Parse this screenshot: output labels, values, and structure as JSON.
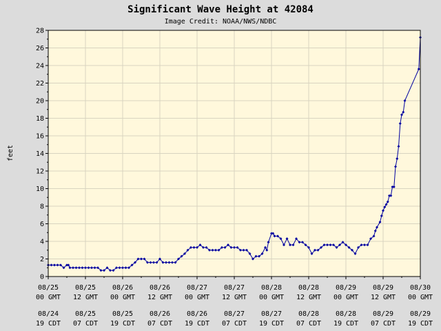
{
  "colors": {
    "background": "#dcdcdc",
    "plot_background": "#fff8dc",
    "grid": "#d8d4c0",
    "series": "#0000a0",
    "axis": "#000000"
  },
  "chart_data": {
    "type": "line",
    "title": "Significant Wave Height at 42084",
    "subtitle": "Image Credit: NOAA/NWS/NDBC",
    "xlabel": "",
    "ylabel": "feet",
    "ylim": [
      0,
      28
    ],
    "yticks": [
      0,
      2,
      4,
      6,
      8,
      10,
      12,
      14,
      16,
      18,
      20,
      22,
      24,
      26,
      28
    ],
    "xlim_hours_since_08_25_00GMT": [
      0,
      120
    ],
    "x_unit": "hours since 08/25 00 GMT",
    "xticks": [
      {
        "hour": 0,
        "gmt_date": "08/25",
        "gmt_time": "00 GMT",
        "cdt_date": "08/24",
        "cdt_time": "19 CDT"
      },
      {
        "hour": 12,
        "gmt_date": "08/25",
        "gmt_time": "12 GMT",
        "cdt_date": "08/25",
        "cdt_time": "07 CDT"
      },
      {
        "hour": 24,
        "gmt_date": "08/26",
        "gmt_time": "00 GMT",
        "cdt_date": "08/25",
        "cdt_time": "19 CDT"
      },
      {
        "hour": 36,
        "gmt_date": "08/26",
        "gmt_time": "12 GMT",
        "cdt_date": "08/26",
        "cdt_time": "07 CDT"
      },
      {
        "hour": 48,
        "gmt_date": "08/27",
        "gmt_time": "00 GMT",
        "cdt_date": "08/26",
        "cdt_time": "19 CDT"
      },
      {
        "hour": 60,
        "gmt_date": "08/27",
        "gmt_time": "12 GMT",
        "cdt_date": "08/27",
        "cdt_time": "07 CDT"
      },
      {
        "hour": 72,
        "gmt_date": "08/28",
        "gmt_time": "00 GMT",
        "cdt_date": "08/27",
        "cdt_time": "19 CDT"
      },
      {
        "hour": 84,
        "gmt_date": "08/28",
        "gmt_time": "12 GMT",
        "cdt_date": "08/28",
        "cdt_time": "07 CDT"
      },
      {
        "hour": 96,
        "gmt_date": "08/29",
        "gmt_time": "00 GMT",
        "cdt_date": "08/28",
        "cdt_time": "19 CDT"
      },
      {
        "hour": 108,
        "gmt_date": "08/29",
        "gmt_time": "12 GMT",
        "cdt_date": "08/29",
        "cdt_time": "07 CDT"
      },
      {
        "hour": 120,
        "gmt_date": "08/30",
        "gmt_time": "00 GMT",
        "cdt_date": "08/29",
        "cdt_time": "19 CDT"
      }
    ],
    "grid": true,
    "legend": "none",
    "series": [
      {
        "points": [
          [
            0.0,
            1.3
          ],
          [
            1.0,
            1.3
          ],
          [
            2.0,
            1.3
          ],
          [
            3.0,
            1.3
          ],
          [
            4.0,
            1.3
          ],
          [
            5.0,
            1.0
          ],
          [
            6.0,
            1.3
          ],
          [
            6.5,
            1.3
          ],
          [
            7.0,
            1.0
          ],
          [
            8.0,
            1.0
          ],
          [
            9.0,
            1.0
          ],
          [
            10.0,
            1.0
          ],
          [
            11.0,
            1.0
          ],
          [
            12.0,
            1.0
          ],
          [
            13.0,
            1.0
          ],
          [
            14.0,
            1.0
          ],
          [
            15.0,
            1.0
          ],
          [
            16.0,
            1.0
          ],
          [
            17.0,
            0.7
          ],
          [
            18.0,
            0.7
          ],
          [
            19.0,
            1.0
          ],
          [
            20.0,
            0.7
          ],
          [
            21.0,
            0.7
          ],
          [
            22.0,
            1.0
          ],
          [
            23.0,
            1.0
          ],
          [
            24.0,
            1.0
          ],
          [
            25.0,
            1.0
          ],
          [
            26.0,
            1.0
          ],
          [
            27.0,
            1.3
          ],
          [
            28.0,
            1.6
          ],
          [
            29.0,
            2.0
          ],
          [
            30.0,
            2.0
          ],
          [
            31.0,
            2.0
          ],
          [
            32.0,
            1.6
          ],
          [
            33.0,
            1.6
          ],
          [
            34.0,
            1.6
          ],
          [
            35.0,
            1.6
          ],
          [
            36.0,
            2.0
          ],
          [
            37.0,
            1.6
          ],
          [
            38.0,
            1.6
          ],
          [
            39.0,
            1.6
          ],
          [
            40.0,
            1.6
          ],
          [
            41.0,
            1.6
          ],
          [
            42.0,
            2.0
          ],
          [
            43.0,
            2.3
          ],
          [
            44.0,
            2.6
          ],
          [
            45.0,
            3.0
          ],
          [
            46.0,
            3.3
          ],
          [
            47.0,
            3.3
          ],
          [
            48.0,
            3.3
          ],
          [
            49.0,
            3.6
          ],
          [
            50.0,
            3.3
          ],
          [
            51.0,
            3.3
          ],
          [
            52.0,
            3.0
          ],
          [
            53.0,
            3.0
          ],
          [
            54.0,
            3.0
          ],
          [
            55.0,
            3.0
          ],
          [
            56.0,
            3.3
          ],
          [
            57.0,
            3.3
          ],
          [
            58.0,
            3.6
          ],
          [
            59.0,
            3.3
          ],
          [
            60.0,
            3.3
          ],
          [
            61.0,
            3.3
          ],
          [
            62.0,
            3.0
          ],
          [
            63.0,
            3.0
          ],
          [
            64.0,
            3.0
          ],
          [
            65.0,
            2.6
          ],
          [
            66.0,
            2.0
          ],
          [
            67.0,
            2.3
          ],
          [
            68.0,
            2.3
          ],
          [
            69.0,
            2.6
          ],
          [
            70.0,
            3.3
          ],
          [
            70.5,
            3.0
          ],
          [
            71.0,
            3.9
          ],
          [
            72.0,
            4.9
          ],
          [
            72.5,
            4.9
          ],
          [
            73.0,
            4.6
          ],
          [
            74.0,
            4.6
          ],
          [
            75.0,
            4.3
          ],
          [
            76.0,
            3.6
          ],
          [
            77.0,
            4.3
          ],
          [
            78.0,
            3.6
          ],
          [
            79.0,
            3.6
          ],
          [
            80.0,
            4.3
          ],
          [
            81.0,
            3.9
          ],
          [
            82.0,
            3.9
          ],
          [
            83.0,
            3.6
          ],
          [
            84.0,
            3.3
          ],
          [
            85.0,
            2.6
          ],
          [
            86.0,
            3.0
          ],
          [
            87.0,
            3.0
          ],
          [
            88.0,
            3.3
          ],
          [
            89.0,
            3.6
          ],
          [
            90.0,
            3.6
          ],
          [
            91.0,
            3.6
          ],
          [
            92.0,
            3.6
          ],
          [
            93.0,
            3.3
          ],
          [
            94.0,
            3.6
          ],
          [
            95.0,
            3.9
          ],
          [
            96.0,
            3.6
          ],
          [
            97.0,
            3.3
          ],
          [
            98.0,
            3.0
          ],
          [
            99.0,
            2.6
          ],
          [
            100.0,
            3.3
          ],
          [
            101.0,
            3.6
          ],
          [
            102.0,
            3.6
          ],
          [
            103.0,
            3.6
          ],
          [
            104.0,
            4.3
          ],
          [
            105.0,
            4.6
          ],
          [
            105.5,
            5.2
          ],
          [
            106.0,
            5.6
          ],
          [
            107.0,
            6.2
          ],
          [
            107.5,
            6.9
          ],
          [
            108.0,
            7.5
          ],
          [
            108.5,
            7.9
          ],
          [
            109.0,
            8.2
          ],
          [
            109.5,
            8.5
          ],
          [
            110.0,
            9.2
          ],
          [
            110.5,
            9.2
          ],
          [
            111.0,
            10.2
          ],
          [
            111.5,
            10.2
          ],
          [
            112.0,
            12.5
          ],
          [
            112.5,
            13.4
          ],
          [
            113.0,
            14.8
          ],
          [
            113.5,
            17.4
          ],
          [
            114.0,
            18.4
          ],
          [
            114.5,
            18.7
          ],
          [
            115.0,
            20.0
          ],
          [
            119.5,
            23.6
          ],
          [
            120.0,
            27.2
          ]
        ]
      }
    ]
  }
}
